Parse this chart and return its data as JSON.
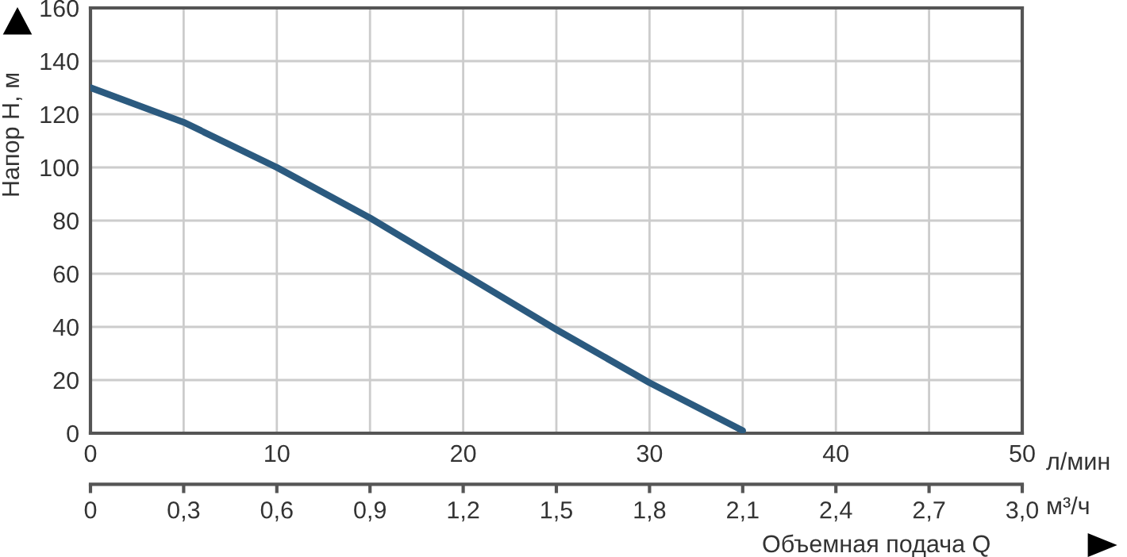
{
  "chart_data": {
    "type": "line",
    "xlabel": "Объемная подача Q",
    "ylabel": "Напор H, м",
    "x": [
      0,
      5,
      10,
      15,
      20,
      25,
      30,
      35
    ],
    "series": [
      {
        "color": "#2b5a7f",
        "values": [
          130,
          117,
          100,
          81,
          60,
          39,
          19,
          1
        ]
      }
    ],
    "xlim": [
      0,
      50
    ],
    "xticks": [
      0,
      {
        "value": 5,
        "label": null
      },
      10,
      {
        "value": 15,
        "label": null
      },
      20,
      {
        "value": 25,
        "label": null
      },
      30,
      {
        "value": 35,
        "label": null
      },
      40,
      {
        "value": 45,
        "label": null
      },
      50
    ],
    "x2lim": [
      0,
      3
    ],
    "x2ticks": [
      {
        "value": 0,
        "label": "0"
      },
      {
        "value": 0.3,
        "label": "0,3"
      },
      {
        "value": 0.6,
        "label": "0,6"
      },
      {
        "value": 0.9,
        "label": "0,9"
      },
      {
        "value": 1.2,
        "label": "1,2"
      },
      {
        "value": 1.5,
        "label": "1,5"
      },
      {
        "value": 1.8,
        "label": "1,8"
      },
      {
        "value": 2.1,
        "label": "2,1"
      },
      {
        "value": 2.4,
        "label": "2,4"
      },
      {
        "value": 2.7,
        "label": "2,7"
      },
      {
        "value": 3,
        "label": "3,0"
      }
    ],
    "ylim": [
      0,
      160
    ],
    "yticks": [
      0,
      20,
      40,
      60,
      80,
      100,
      120,
      140,
      160
    ],
    "grid": true,
    "marker": "none",
    "line_style": "solid",
    "annotations": [
      "л/мин",
      "м³/ч"
    ]
  }
}
